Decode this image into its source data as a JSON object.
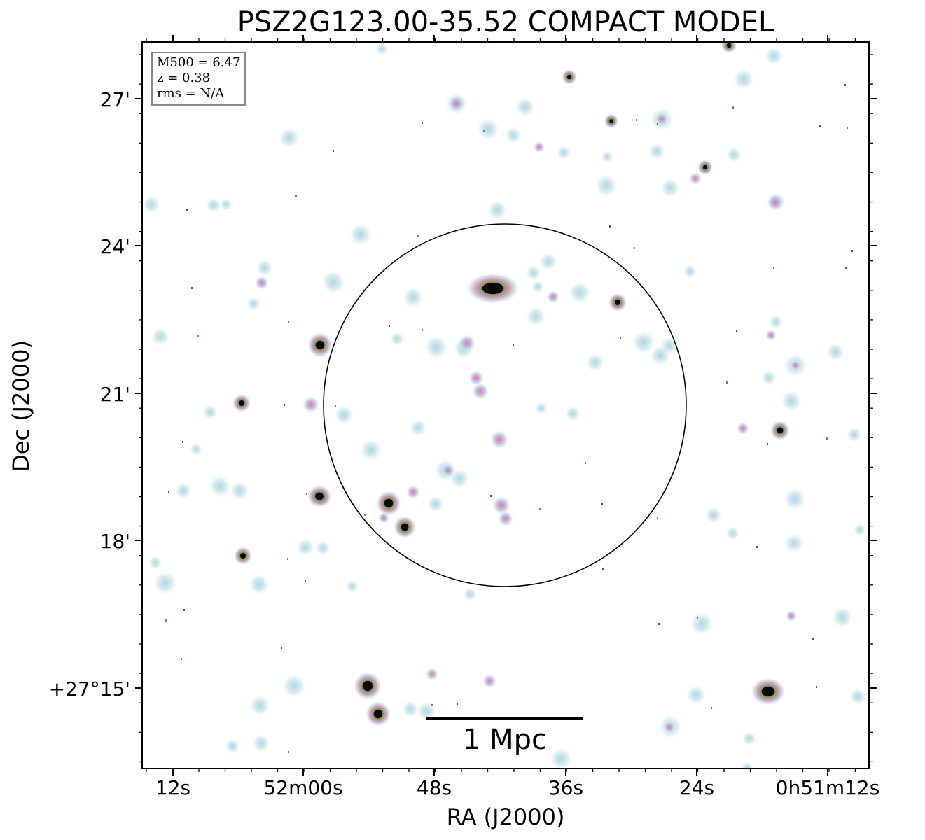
{
  "figure": {
    "title": "PSZ2G123.00-35.52 COMPACT MODEL",
    "xlabel": "RA (J2000)",
    "ylabel": "Dec (J2000)",
    "x_ticks": [
      "12s",
      "52m00s",
      "48s",
      "36s",
      "24s",
      "0h51m12s"
    ],
    "y_ticks": [
      "27'",
      "24'",
      "21'",
      "18'",
      "+27°15'"
    ],
    "info": {
      "m500": "M500 = 6.47",
      "z": "z = 0.38",
      "rms": "rms = N/A"
    },
    "scale_bar_label": "1 Mpc",
    "colors": {
      "frame": "#000000",
      "faint_halo": "#b7dde6",
      "source_pink": "#c9789a",
      "source_green": "#3c7a3a",
      "source_core": "#000000"
    }
  }
}
